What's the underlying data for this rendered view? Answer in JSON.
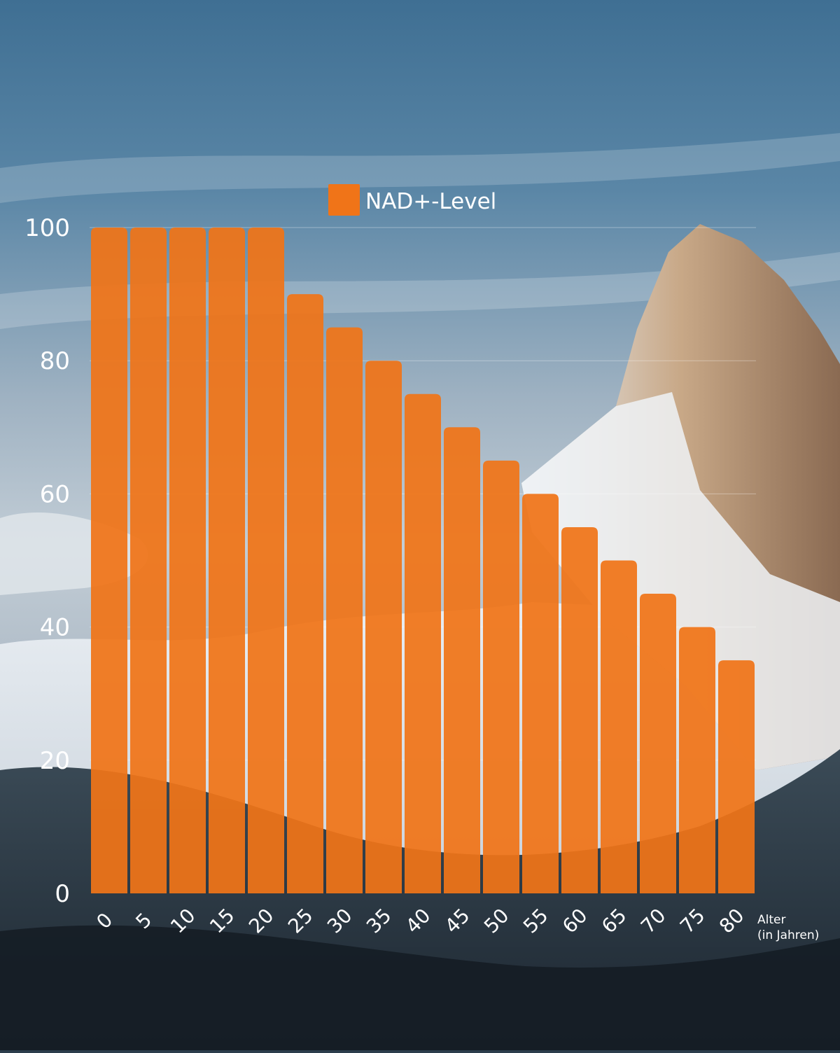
{
  "colors": {
    "bar": "#f07418",
    "text": "#ffffff",
    "gridline": "#ffffff"
  },
  "background": {
    "description_icon": "mountain-photo"
  },
  "legend": {
    "label": "NAD+-Level"
  },
  "axis": {
    "x_title_line1": "Alter",
    "x_title_line2": "(in Jahren)"
  },
  "chart_data": {
    "type": "bar",
    "categories": [
      "0",
      "5",
      "10",
      "15",
      "20",
      "25",
      "30",
      "35",
      "40",
      "45",
      "50",
      "55",
      "60",
      "65",
      "70",
      "75",
      "80"
    ],
    "series": [
      {
        "name": "NAD+-Level",
        "values": [
          100,
          100,
          100,
          100,
          100,
          90,
          85,
          80,
          75,
          70,
          65,
          60,
          55,
          50,
          45,
          40,
          35
        ]
      }
    ],
    "title": "",
    "xlabel": "Alter (in Jahren)",
    "ylabel": "",
    "ylim": [
      0,
      100
    ],
    "yticks": [
      "0",
      "20",
      "40",
      "60",
      "80",
      "100"
    ],
    "grid": true,
    "legend_position": "top-center"
  }
}
